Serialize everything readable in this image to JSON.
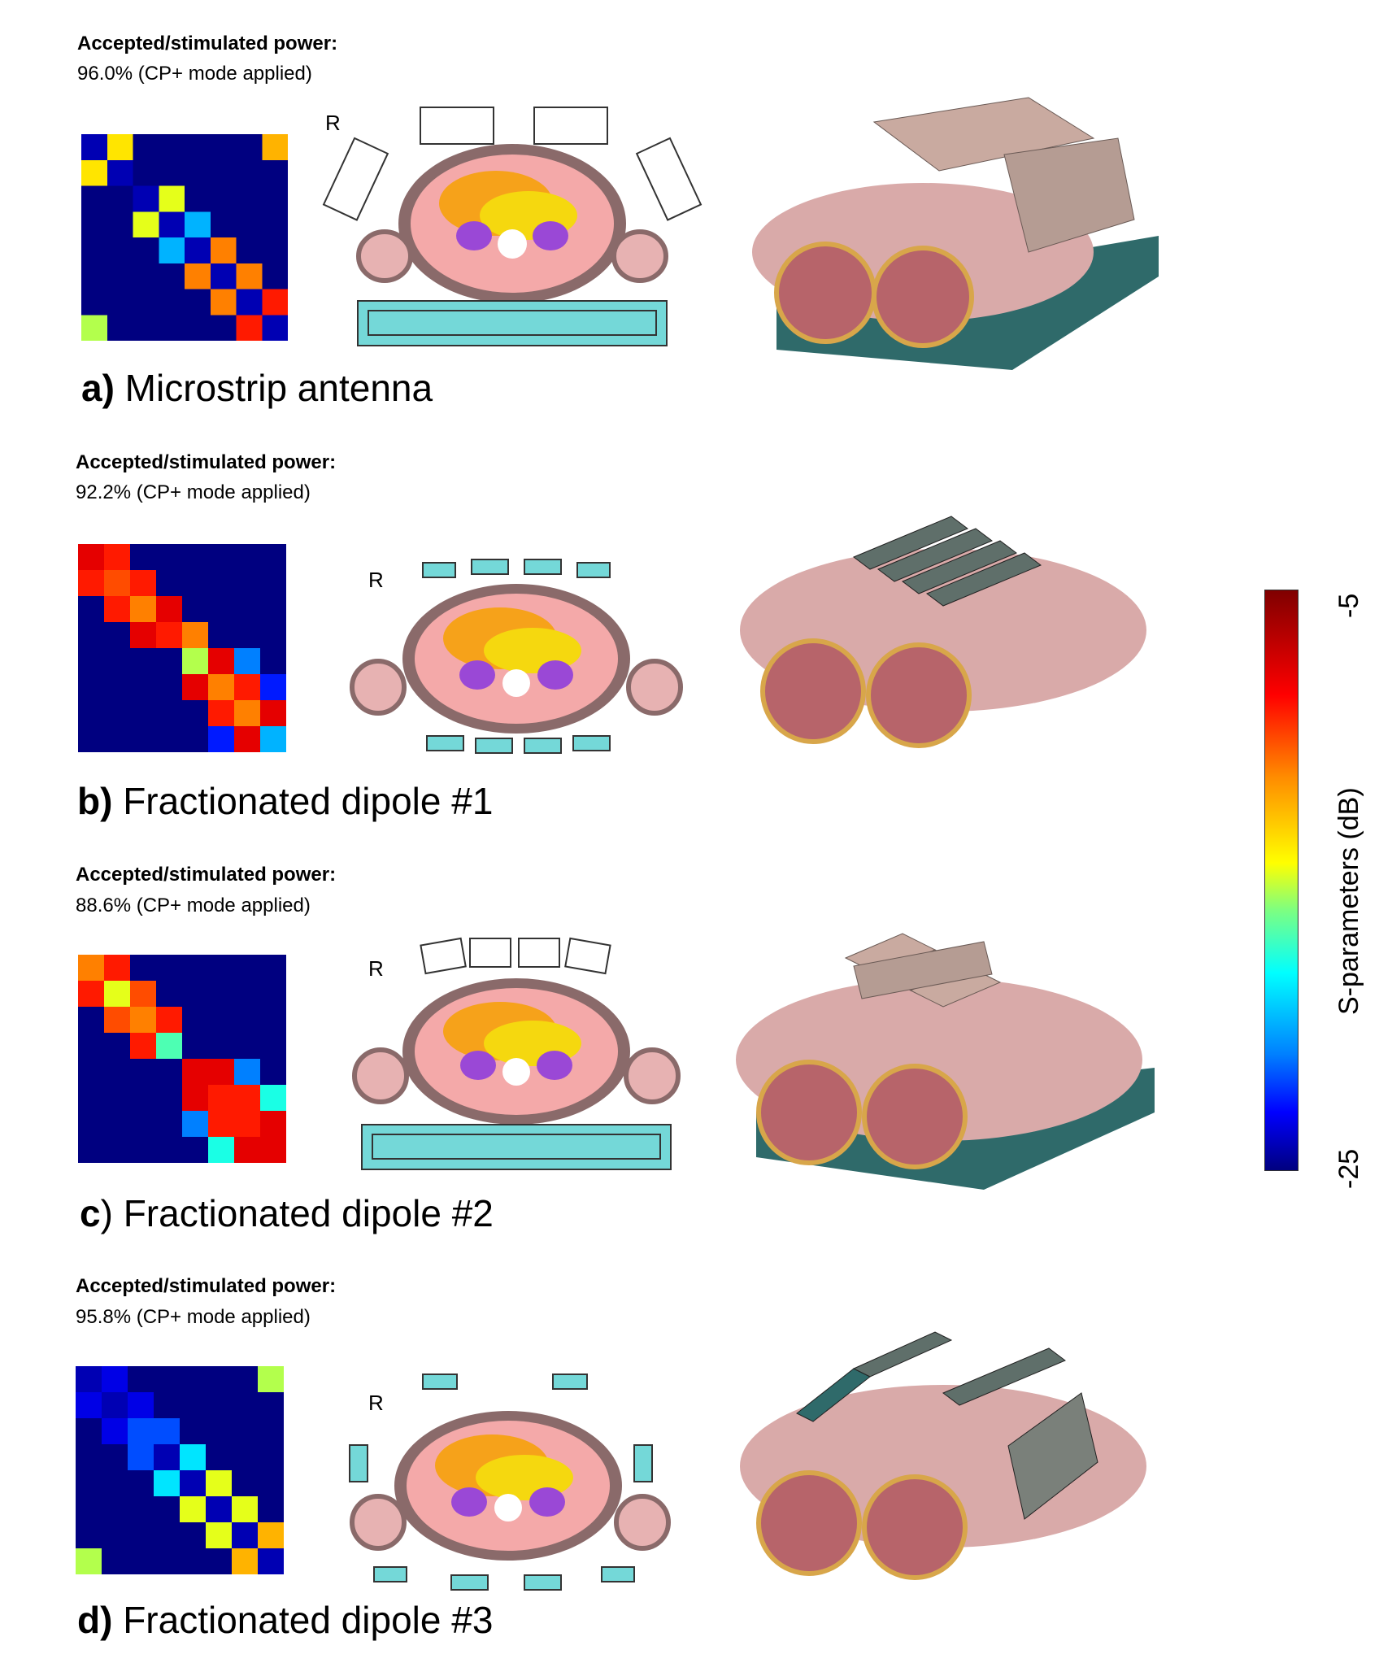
{
  "panels": [
    {
      "power_title": "Accepted/stimulated power:",
      "power_value": "96.0% (CP+ mode applied)",
      "label_bold": "a)",
      "label_text": " Microstrip antenna",
      "orientation": "R",
      "matrix": [
        [
          -24,
          -12,
          -25,
          -25,
          -25,
          -25,
          -25,
          -11
        ],
        [
          -12,
          -24,
          -25,
          -25,
          -25,
          -25,
          -25,
          -25
        ],
        [
          -25,
          -25,
          -24,
          -13,
          -25,
          -25,
          -25,
          -25
        ],
        [
          -25,
          -25,
          -13,
          -24,
          -19,
          -25,
          -25,
          -25
        ],
        [
          -25,
          -25,
          -25,
          -19,
          -24,
          -10,
          -25,
          -25
        ],
        [
          -25,
          -25,
          -25,
          -25,
          -10,
          -24,
          -10,
          -25
        ],
        [
          -25,
          -25,
          -25,
          -25,
          -25,
          -10,
          -24,
          -8
        ],
        [
          -14,
          -25,
          -25,
          -25,
          -25,
          -25,
          -8,
          -24
        ]
      ]
    },
    {
      "power_title": "Accepted/stimulated power:",
      "power_value": "92.2% (CP+ mode applied)",
      "label_bold": "b)",
      "label_text": " Fractionated dipole #1",
      "orientation": "R",
      "matrix": [
        [
          -7,
          -8,
          -25,
          -25,
          -25,
          -25,
          -25,
          -25
        ],
        [
          -8,
          -9,
          -8,
          -25,
          -25,
          -25,
          -25,
          -25
        ],
        [
          -25,
          -8,
          -10,
          -7,
          -25,
          -25,
          -25,
          -25
        ],
        [
          -25,
          -25,
          -7,
          -8,
          -10,
          -25,
          -25,
          -25
        ],
        [
          -25,
          -25,
          -25,
          -25,
          -14,
          -7,
          -20,
          -25
        ],
        [
          -25,
          -25,
          -25,
          -25,
          -7,
          -10,
          -8,
          -22
        ],
        [
          -25,
          -25,
          -25,
          -25,
          -25,
          -8,
          -10,
          -7
        ],
        [
          -25,
          -25,
          -25,
          -25,
          -25,
          -22,
          -7,
          -19
        ]
      ]
    },
    {
      "power_title": "Accepted/stimulated power:",
      "power_value": "88.6% (CP+ mode applied)",
      "label_bold": "c",
      "label_text": ") Fractionated dipole #2",
      "orientation": "R",
      "matrix": [
        [
          -10,
          -8,
          -25,
          -25,
          -25,
          -25,
          -25,
          -25
        ],
        [
          -8,
          -13,
          -9,
          -25,
          -25,
          -25,
          -25,
          -25
        ],
        [
          -25,
          -9,
          -10,
          -8,
          -25,
          -25,
          -25,
          -25
        ],
        [
          -25,
          -25,
          -8,
          -16,
          -25,
          -25,
          -25,
          -25
        ],
        [
          -25,
          -25,
          -25,
          -25,
          -7,
          -7,
          -20,
          -25
        ],
        [
          -25,
          -25,
          -25,
          -25,
          -7,
          -8,
          -8,
          -17
        ],
        [
          -25,
          -25,
          -25,
          -25,
          -20,
          -8,
          -8,
          -7
        ],
        [
          -25,
          -25,
          -25,
          -25,
          -25,
          -17,
          -7,
          -7
        ]
      ]
    },
    {
      "power_title": "Accepted/stimulated power:",
      "power_value": "95.8% (CP+ mode applied)",
      "label_bold": "d)",
      "label_text": " Fractionated dipole #3",
      "orientation": "R",
      "matrix": [
        [
          -24,
          -23,
          -25,
          -25,
          -25,
          -25,
          -25,
          -14
        ],
        [
          -23,
          -24,
          -23,
          -25,
          -25,
          -25,
          -25,
          -25
        ],
        [
          -25,
          -23,
          -21,
          -21,
          -25,
          -25,
          -25,
          -25
        ],
        [
          -25,
          -25,
          -21,
          -24,
          -18,
          -25,
          -25,
          -25
        ],
        [
          -25,
          -25,
          -25,
          -18,
          -24,
          -13,
          -25,
          -25
        ],
        [
          -25,
          -25,
          -25,
          -25,
          -13,
          -24,
          -13,
          -25
        ],
        [
          -25,
          -25,
          -25,
          -25,
          -25,
          -13,
          -24,
          -11
        ],
        [
          -14,
          -25,
          -25,
          -25,
          -25,
          -25,
          -11,
          -24
        ]
      ]
    }
  ],
  "colorbar": {
    "label": "S-parameters (dB)",
    "max_label": "-5",
    "min_label": "-25",
    "min": -25,
    "max": -5
  }
}
